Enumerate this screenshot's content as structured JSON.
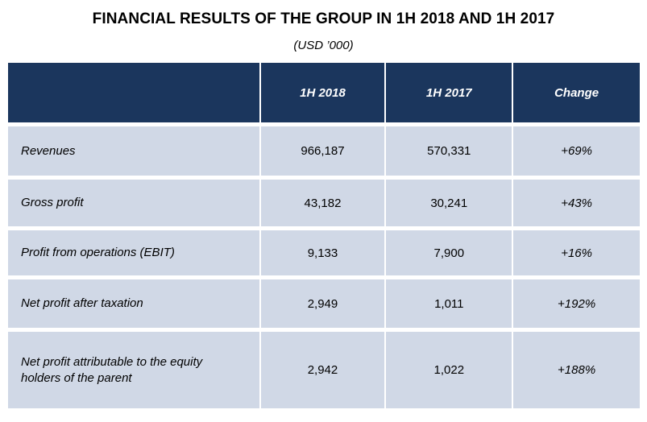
{
  "title": "FINANCIAL RESULTS OF THE GROUP IN 1H 2018 AND 1H 2017",
  "subtitle": "(USD ’000)",
  "table": {
    "headers": [
      "",
      "1H 2018",
      "1H 2017",
      "Change"
    ],
    "rows": [
      {
        "label": "Revenues",
        "h2018": "966,187",
        "h2017": "570,331",
        "change": "+69%"
      },
      {
        "label": "Gross profit",
        "h2018": "43,182",
        "h2017": "30,241",
        "change": "+43%"
      },
      {
        "label": "Profit from operations (EBIT)",
        "h2018": "9,133",
        "h2017": "7,900",
        "change": "+16%"
      },
      {
        "label": "Net profit after taxation",
        "h2018": "2,949",
        "h2017": "1,011",
        "change": "+192%"
      },
      {
        "label": "Net profit attributable to the equity holders of the parent",
        "h2018": "2,942",
        "h2017": "1,022",
        "change": "+188%"
      }
    ]
  },
  "colors": {
    "header_bg": "#1b365d",
    "row_bg": "#d0d8e6"
  }
}
